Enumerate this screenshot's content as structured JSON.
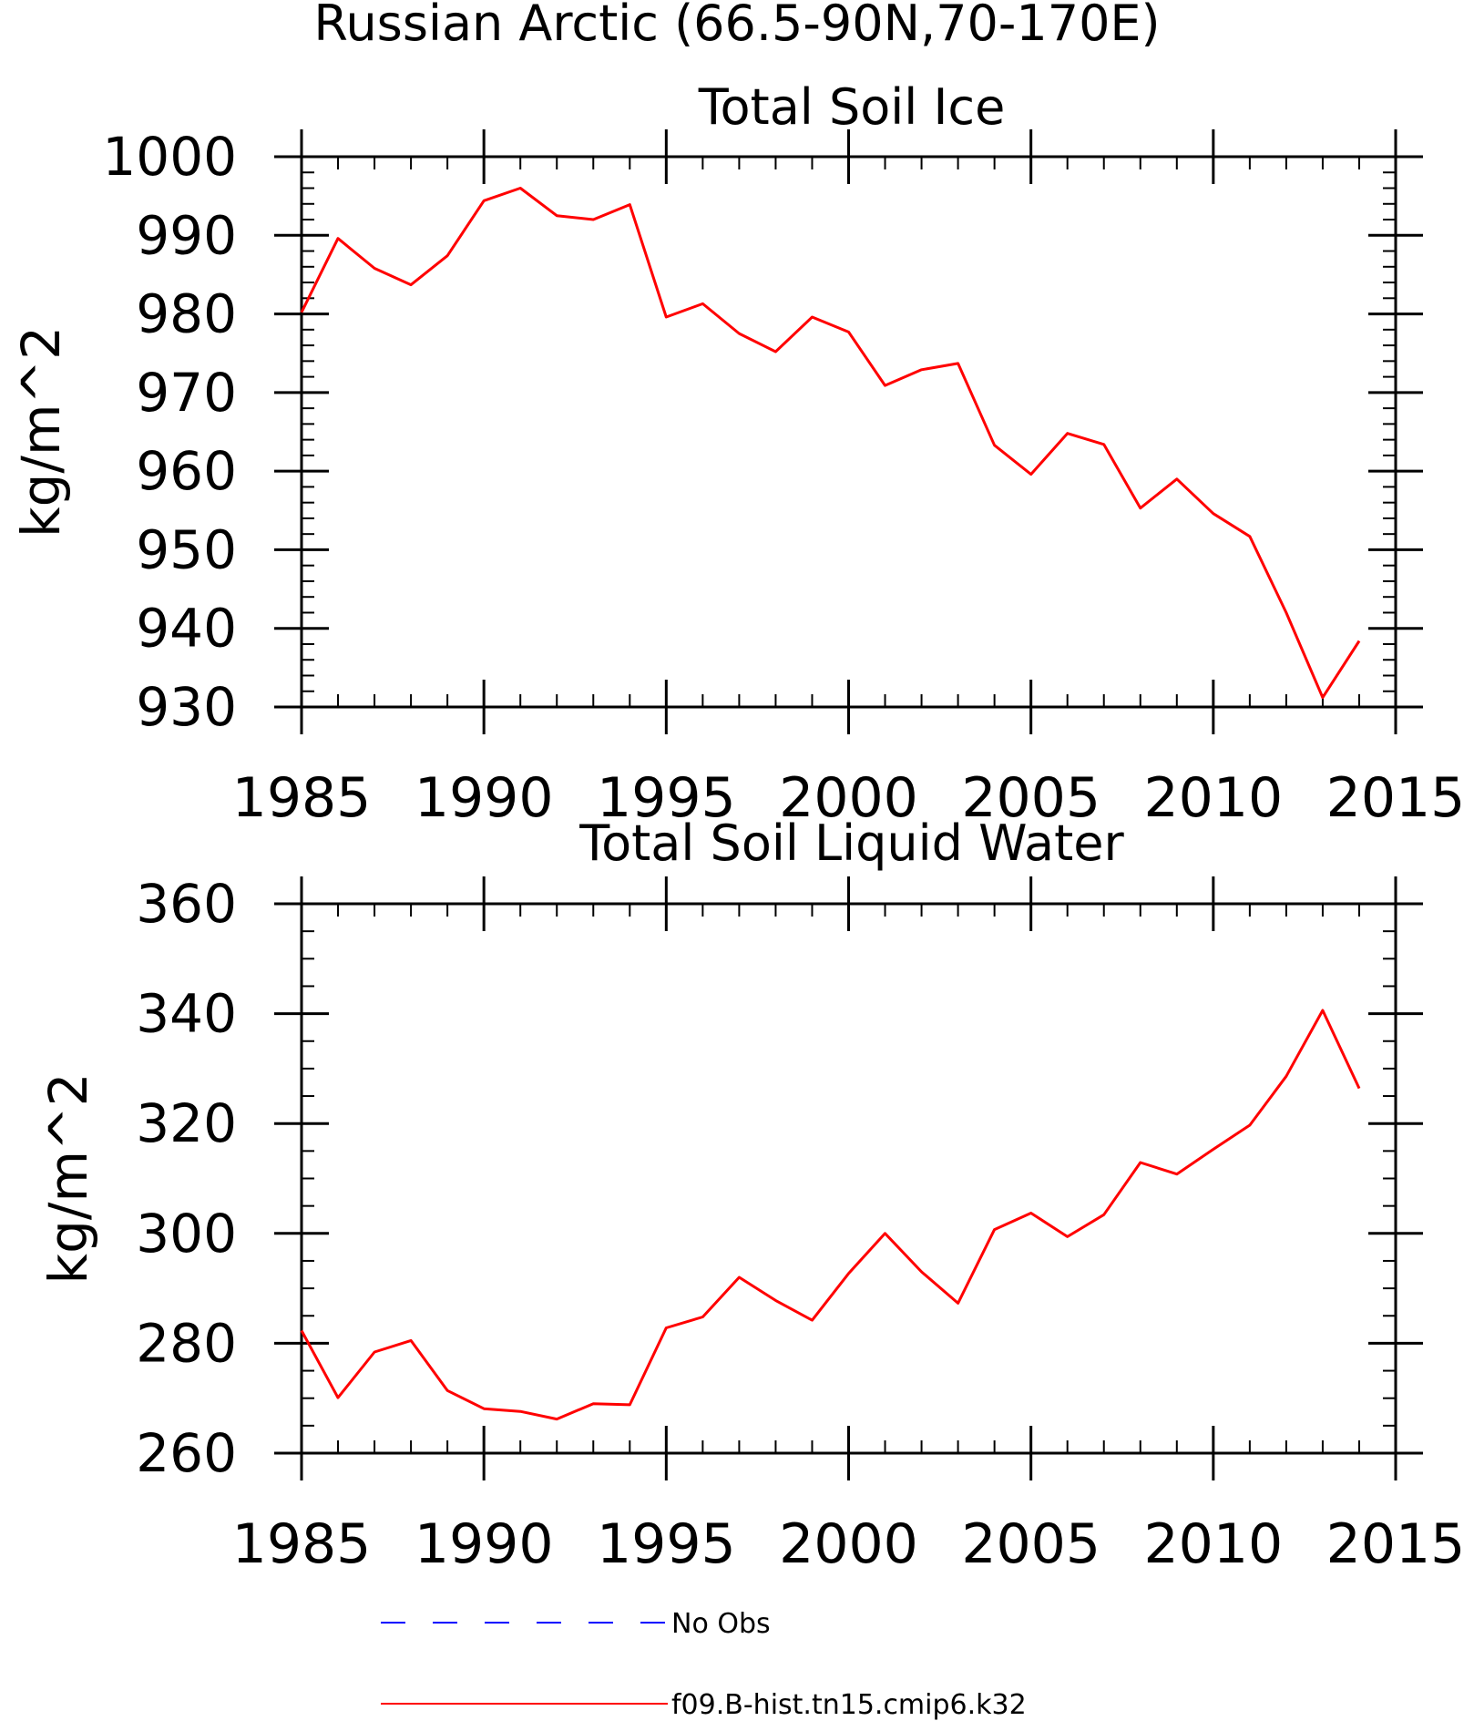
{
  "header": {
    "title": "Russian Arctic (66.5-90N,70-170E)"
  },
  "chart_data": [
    {
      "type": "line",
      "title": "Total Soil Ice",
      "xlabel": "",
      "ylabel": "kg/m^2",
      "xlim": [
        1985,
        2015
      ],
      "ylim": [
        930,
        1000
      ],
      "x_ticks": [
        "1985",
        "1990",
        "1995",
        "2000",
        "2005",
        "2010",
        "2015"
      ],
      "y_ticks": [
        "930",
        "940",
        "950",
        "960",
        "970",
        "980",
        "990",
        "1000"
      ],
      "x_tick_values": [
        1985,
        1990,
        1995,
        2000,
        2005,
        2010,
        2015
      ],
      "y_tick_values": [
        930,
        940,
        950,
        960,
        970,
        980,
        990,
        1000
      ],
      "x_minor_step": 1,
      "y_minor_step": 2,
      "grid": false,
      "series": [
        {
          "name": "f09.B-hist.tn15.cmip6.k32",
          "color": "#ff0000",
          "x": [
            1985,
            1986,
            1987,
            1988,
            1989,
            1990,
            1991,
            1992,
            1993,
            1994,
            1995,
            1996,
            1997,
            1998,
            1999,
            2000,
            2001,
            2002,
            2003,
            2004,
            2005,
            2006,
            2007,
            2008,
            2009,
            2010,
            2011,
            2012,
            2013,
            2014
          ],
          "values": [
            980.2,
            989.6,
            985.8,
            983.7,
            987.4,
            994.4,
            996.0,
            992.5,
            992.0,
            993.9,
            979.6,
            981.3,
            977.5,
            975.2,
            979.6,
            977.7,
            970.9,
            972.9,
            973.7,
            963.3,
            959.6,
            964.8,
            963.4,
            955.3,
            959.0,
            954.6,
            951.7,
            942.0,
            931.2,
            938.4
          ]
        }
      ]
    },
    {
      "type": "line",
      "title": "Total Soil Liquid Water",
      "xlabel": "",
      "ylabel": "kg/m^2",
      "xlim": [
        1985,
        2015
      ],
      "ylim": [
        260,
        360
      ],
      "x_ticks": [
        "1985",
        "1990",
        "1995",
        "2000",
        "2005",
        "2010",
        "2015"
      ],
      "y_ticks": [
        "260",
        "280",
        "300",
        "320",
        "340",
        "360"
      ],
      "x_tick_values": [
        1985,
        1990,
        1995,
        2000,
        2005,
        2010,
        2015
      ],
      "y_tick_values": [
        260,
        280,
        300,
        320,
        340,
        360
      ],
      "x_minor_step": 1,
      "y_minor_step": 5,
      "grid": false,
      "series": [
        {
          "name": "f09.B-hist.tn15.cmip6.k32",
          "color": "#ff0000",
          "x": [
            1985,
            1986,
            1987,
            1988,
            1989,
            1990,
            1991,
            1992,
            1993,
            1994,
            1995,
            1996,
            1997,
            1998,
            1999,
            2000,
            2001,
            2002,
            2003,
            2004,
            2005,
            2006,
            2007,
            2008,
            2009,
            2010,
            2011,
            2012,
            2013,
            2014
          ],
          "values": [
            282.3,
            270.1,
            278.4,
            280.5,
            271.4,
            268.1,
            267.6,
            266.2,
            269.0,
            268.8,
            282.8,
            284.8,
            292.0,
            287.8,
            284.2,
            292.7,
            300.0,
            293.0,
            287.3,
            300.7,
            303.7,
            299.4,
            303.4,
            312.9,
            310.8,
            315.3,
            319.7,
            328.6,
            340.6,
            326.4
          ]
        }
      ]
    }
  ],
  "legend": {
    "placement": "bottom-center",
    "entries": [
      {
        "label": "No Obs",
        "color": "#0000ff",
        "style": "dashed"
      },
      {
        "label": "f09.B-hist.tn15.cmip6.k32",
        "color": "#ff0000",
        "style": "solid"
      }
    ]
  }
}
